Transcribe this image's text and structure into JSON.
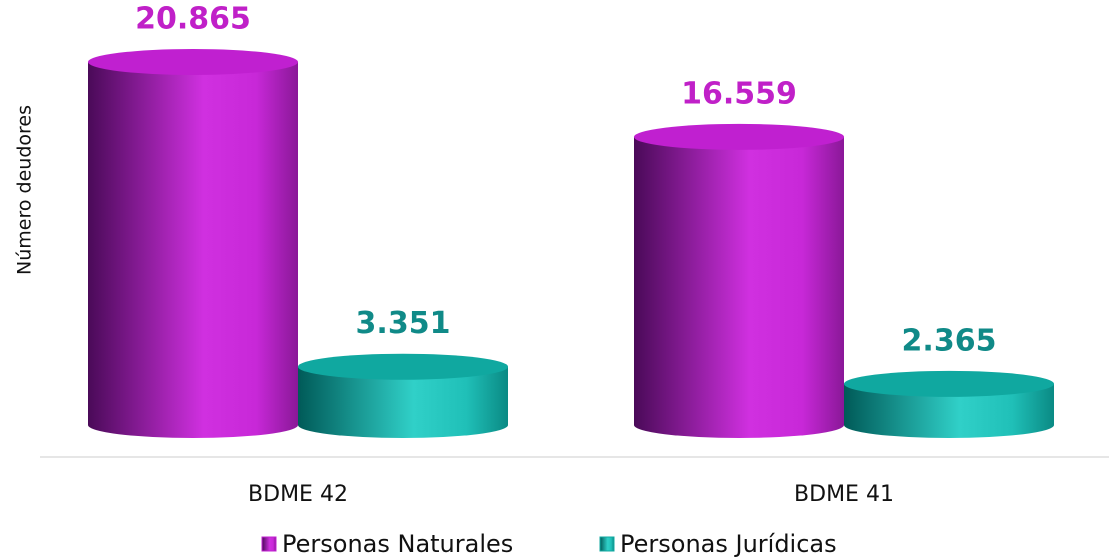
{
  "chart_data": {
    "type": "bar",
    "y_label": "Número deudores",
    "categories": [
      "BDME 42",
      "BDME 41"
    ],
    "series": [
      {
        "name": "Personas Naturales",
        "color": "#c020d0",
        "label_color": "#c020c8",
        "values": [
          20865,
          16559
        ],
        "value_labels": [
          "20.865",
          "16.559"
        ]
      },
      {
        "name": "Personas Jurídicas",
        "color": "#10a8a0",
        "label_color": "#108a88",
        "values": [
          3351,
          2365
        ],
        "value_labels": [
          "3.351",
          "2.365"
        ]
      }
    ]
  }
}
